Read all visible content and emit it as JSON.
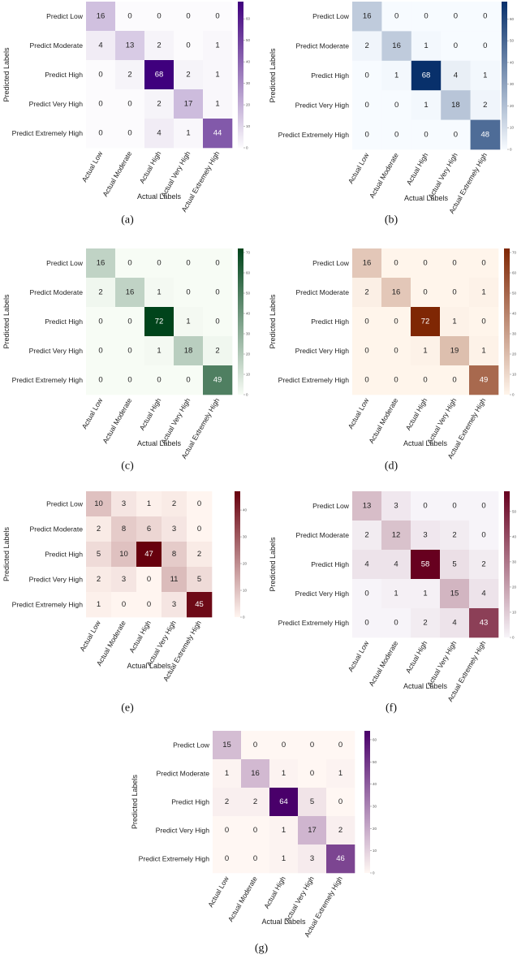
{
  "chart_data": [
    {
      "type": "heatmap",
      "caption": "(a)",
      "rows": [
        "Predict Low",
        "Predict Moderate",
        "Predict High",
        "Predict Very High",
        "Predict Extremely High"
      ],
      "columns": [
        "Actual Low",
        "Actual Moderate",
        "Actual High",
        "Actual Very High",
        "Actual Extremely High"
      ],
      "values": [
        [
          16,
          0,
          0,
          0,
          0
        ],
        [
          4,
          13,
          2,
          0,
          1
        ],
        [
          0,
          2,
          68,
          2,
          1
        ],
        [
          0,
          0,
          2,
          17,
          1
        ],
        [
          0,
          0,
          4,
          1,
          44
        ]
      ],
      "xlabel": "Actual Labels",
      "ylabel": "Predicted Labels",
      "colormap": [
        "#fcfbfd",
        "#3f007d"
      ],
      "colorbar_range": [
        0,
        68
      ],
      "colorbar_ticks": [
        0,
        10,
        20,
        30,
        40,
        50,
        60
      ]
    },
    {
      "type": "heatmap",
      "caption": "(b)",
      "rows": [
        "Predict Low",
        "Predict Moderate",
        "Predict High",
        "Predict Very High",
        "Predict Extremely High"
      ],
      "columns": [
        "Actual Low",
        "Actual Moderate",
        "Actual High",
        "Actual Very High",
        "Actual Extremely High"
      ],
      "values": [
        [
          16,
          0,
          0,
          0,
          0
        ],
        [
          2,
          16,
          1,
          0,
          0
        ],
        [
          0,
          1,
          68,
          4,
          1
        ],
        [
          0,
          0,
          1,
          18,
          2
        ],
        [
          0,
          0,
          0,
          0,
          48
        ]
      ],
      "xlabel": "Actual Labels",
      "ylabel": "Predicted Labels",
      "colormap": [
        "#f7fbff",
        "#08306b"
      ],
      "colorbar_range": [
        0,
        68
      ],
      "colorbar_ticks": [
        0,
        10,
        20,
        30,
        40,
        50,
        60
      ]
    },
    {
      "type": "heatmap",
      "caption": "(c)",
      "rows": [
        "Predict Low",
        "Predict Moderate",
        "Predict High",
        "Predict Very High",
        "Predict Extremely High"
      ],
      "columns": [
        "Actual Low",
        "Actual Moderate",
        "Actual High",
        "Actual Very High",
        "Actual Extremely High"
      ],
      "values": [
        [
          16,
          0,
          0,
          0,
          0
        ],
        [
          2,
          16,
          1,
          0,
          0
        ],
        [
          0,
          0,
          72,
          1,
          0
        ],
        [
          0,
          0,
          1,
          18,
          2
        ],
        [
          0,
          0,
          0,
          0,
          49
        ]
      ],
      "xlabel": "Actual Labels",
      "ylabel": "Predicted Labels",
      "colormap": [
        "#f7fcf5",
        "#00441b"
      ],
      "colorbar_range": [
        0,
        72
      ],
      "colorbar_ticks": [
        0,
        10,
        20,
        30,
        40,
        50,
        60,
        70
      ]
    },
    {
      "type": "heatmap",
      "caption": "(d)",
      "rows": [
        "Predict Low",
        "Predict Moderate",
        "Predict High",
        "Predict Very High",
        "Predict Extremely High"
      ],
      "columns": [
        "Actual Low",
        "Actual Moderate",
        "Actual High",
        "Actual Very High",
        "Actual Extremely High"
      ],
      "values": [
        [
          16,
          0,
          0,
          0,
          0
        ],
        [
          2,
          16,
          0,
          0,
          1
        ],
        [
          0,
          0,
          72,
          1,
          0
        ],
        [
          0,
          0,
          1,
          19,
          1
        ],
        [
          0,
          0,
          0,
          0,
          49
        ]
      ],
      "xlabel": "Actual Labels",
      "ylabel": "Predicted Labels",
      "colormap": [
        "#fff5eb",
        "#7f2704"
      ],
      "colorbar_range": [
        0,
        72
      ],
      "colorbar_ticks": [
        0,
        10,
        20,
        30,
        40,
        50,
        60,
        70
      ]
    },
    {
      "type": "heatmap",
      "caption": "(e)",
      "rows": [
        "Predict Low",
        "Predict Moderate",
        "Predict High",
        "Predict Very High",
        "Predict Extremely High"
      ],
      "columns": [
        "Actual Low",
        "Actual Moderate",
        "Actual High",
        "Actual Very High",
        "Actual Extremely High"
      ],
      "values": [
        [
          10,
          3,
          1,
          2,
          0
        ],
        [
          2,
          8,
          6,
          3,
          0
        ],
        [
          5,
          10,
          47,
          8,
          2
        ],
        [
          2,
          3,
          0,
          11,
          5
        ],
        [
          1,
          0,
          0,
          3,
          45
        ]
      ],
      "xlabel": "Actual Labels",
      "ylabel": "Predicted Labels",
      "colormap": [
        "#fff5f0",
        "#67000d"
      ],
      "colorbar_range": [
        0,
        47
      ],
      "colorbar_ticks": [
        0,
        10,
        20,
        30,
        40
      ]
    },
    {
      "type": "heatmap",
      "caption": "(f)",
      "rows": [
        "Predict Low",
        "Predict Moderate",
        "Predict High",
        "Predict Very High",
        "Predict Extremely High"
      ],
      "columns": [
        "Actual Low",
        "Actual Moderate",
        "Actual High",
        "Actual Very High",
        "Actual Extremely High"
      ],
      "values": [
        [
          13,
          3,
          0,
          0,
          0
        ],
        [
          2,
          12,
          3,
          2,
          0
        ],
        [
          4,
          4,
          58,
          5,
          2
        ],
        [
          0,
          1,
          1,
          15,
          4
        ],
        [
          0,
          0,
          2,
          4,
          43
        ]
      ],
      "xlabel": "Actual Labels",
      "ylabel": "Predicted Labels",
      "colormap": [
        "#f7f4f9",
        "#67001f"
      ],
      "colorbar_range": [
        0,
        58
      ],
      "colorbar_ticks": [
        0,
        10,
        20,
        30,
        40,
        50
      ]
    },
    {
      "type": "heatmap",
      "caption": "(g)",
      "rows": [
        "Predict Low",
        "Predict Moderate",
        "Predict High",
        "Predict Very High",
        "Predict Extremely High"
      ],
      "columns": [
        "Actual Low",
        "Actual Moderate",
        "Actual High",
        "Actual Very High",
        "Actual Extremely High"
      ],
      "values": [
        [
          15,
          0,
          0,
          0,
          0
        ],
        [
          1,
          16,
          1,
          0,
          1
        ],
        [
          2,
          2,
          64,
          5,
          0
        ],
        [
          0,
          0,
          1,
          17,
          2
        ],
        [
          0,
          0,
          1,
          3,
          46
        ]
      ],
      "xlabel": "Actual Labels",
      "ylabel": "Predicted Labels",
      "colormap": [
        "#fff7f3",
        "#49006a"
      ],
      "colorbar_range": [
        0,
        64
      ],
      "colorbar_ticks": [
        0,
        10,
        20,
        30,
        40,
        50,
        60
      ]
    }
  ]
}
